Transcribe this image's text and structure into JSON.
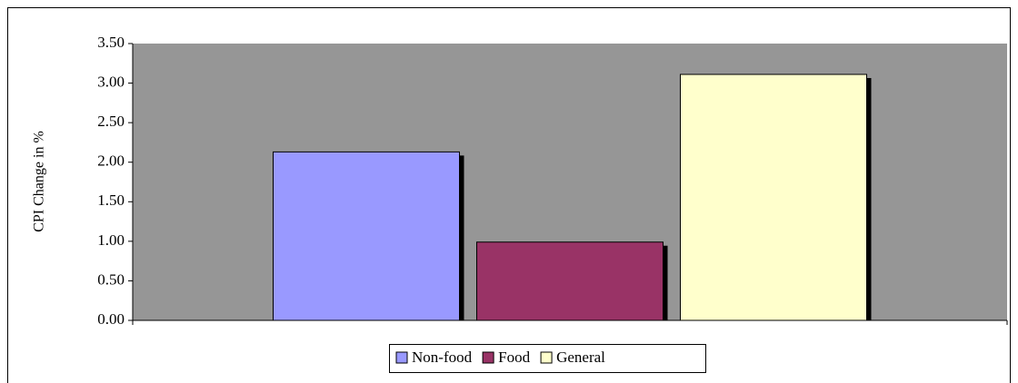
{
  "chart_data": {
    "type": "bar",
    "y_label": "CPI Change in %",
    "categories": [
      null
    ],
    "series": [
      {
        "name": "Non-food",
        "color": "#9999ff",
        "values": [
          2.13
        ]
      },
      {
        "name": "Food",
        "color": "#993366",
        "values": [
          0.99
        ]
      },
      {
        "name": "General",
        "color": "#ffffcc",
        "values": [
          3.11
        ]
      }
    ],
    "ylim": [
      0,
      3.5
    ],
    "yticks": [
      {
        "value": 0,
        "label": "0.00"
      },
      {
        "value": 0.5,
        "label": "0.50"
      },
      {
        "value": 1,
        "label": "1.00"
      },
      {
        "value": 1.5,
        "label": "1.50"
      },
      {
        "value": 2,
        "label": "2.00"
      },
      {
        "value": 2.5,
        "label": "2.50"
      },
      {
        "value": 3,
        "label": "3.00"
      },
      {
        "value": 3.5,
        "label": "3.50"
      }
    ],
    "plot_background": "#969696",
    "legend": "bottom"
  }
}
